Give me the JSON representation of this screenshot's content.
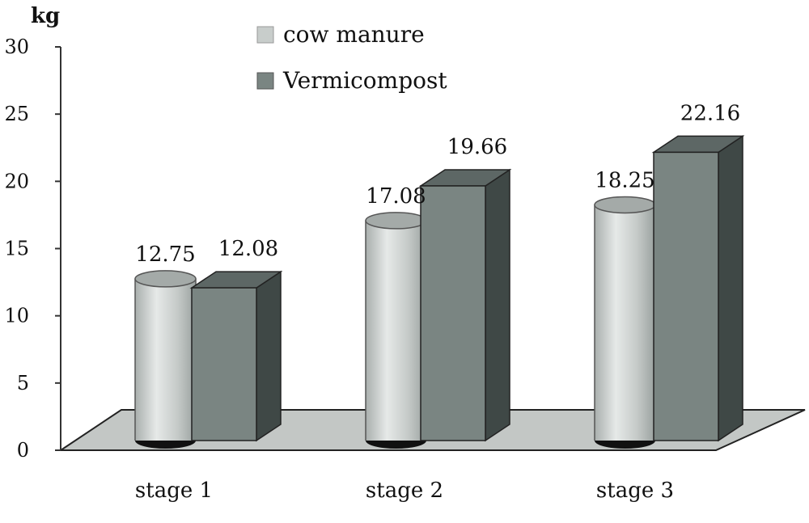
{
  "chart_data": {
    "type": "bar",
    "ylabel": "kg",
    "ylim": [
      0,
      30
    ],
    "yticks": [
      0,
      5,
      10,
      15,
      20,
      25,
      30
    ],
    "categories": [
      "stage 1",
      "stage 2",
      "stage 3"
    ],
    "series": [
      {
        "name": "cow manure",
        "shape": "cylinder",
        "color": "#c8cdcb",
        "values": [
          12.75,
          17.08,
          18.25
        ],
        "value_labels": [
          "12.75",
          "17.08",
          "18.25"
        ]
      },
      {
        "name": "Vermicompost",
        "shape": "box",
        "color": "#7a8582",
        "values": [
          12.08,
          19.66,
          22.16
        ],
        "value_labels": [
          "12.08",
          "19.66",
          "22.16"
        ]
      }
    ],
    "legend": "top-center",
    "grid": false
  }
}
